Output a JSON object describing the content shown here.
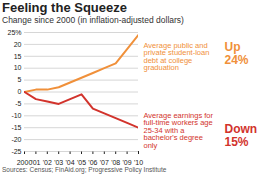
{
  "chart_data": {
    "type": "line",
    "title": "Feeling the Squeeze",
    "subtitle": "Change since 2000 (in inflation-adjusted dollars)",
    "caption": "Sources: Census; FinAid.org; Progressive Policy Institute",
    "x": [
      2000,
      2001,
      2002,
      2003,
      2004,
      2005,
      2006,
      2007,
      2008,
      2009,
      2010
    ],
    "xlim": [
      2000,
      2010
    ],
    "xticks": [
      2000,
      {
        "value": 2001,
        "label": "'01"
      },
      {
        "value": 2002,
        "label": "'02"
      },
      {
        "value": 2003,
        "label": "'03"
      },
      {
        "value": 2004,
        "label": "'04"
      },
      {
        "value": 2005,
        "label": "'05"
      },
      {
        "value": 2006,
        "label": "'06"
      },
      {
        "value": 2007,
        "label": "'07"
      },
      {
        "value": 2008,
        "label": "'08"
      },
      {
        "value": 2009,
        "label": "'09"
      },
      {
        "value": 2010,
        "label": "'10"
      }
    ],
    "ylim": [
      -25,
      25
    ],
    "yticks": [
      -25,
      -20,
      -15,
      -10,
      -5,
      0,
      5,
      10,
      15,
      20,
      {
        "value": 25,
        "label": "25%"
      }
    ],
    "grid": true,
    "series": [
      {
        "name": "Average public and private student-loan debt at college graduation",
        "color": "#f0903a",
        "values": [
          0,
          1,
          1,
          2,
          4,
          6,
          8,
          10,
          12,
          18,
          24
        ]
      },
      {
        "name": "Average earnings for full-time workers age 25-34 with a bachelor's degree only",
        "color": "#d2332c",
        "values": [
          0,
          -3,
          -4,
          -5,
          -3,
          -1,
          -7,
          -9,
          -11,
          -13,
          -15
        ]
      }
    ],
    "annotations": [
      {
        "text": "Up 24%",
        "color": "#f0903a"
      },
      {
        "text": "Down 15%",
        "color": "#d2332c"
      }
    ]
  }
}
